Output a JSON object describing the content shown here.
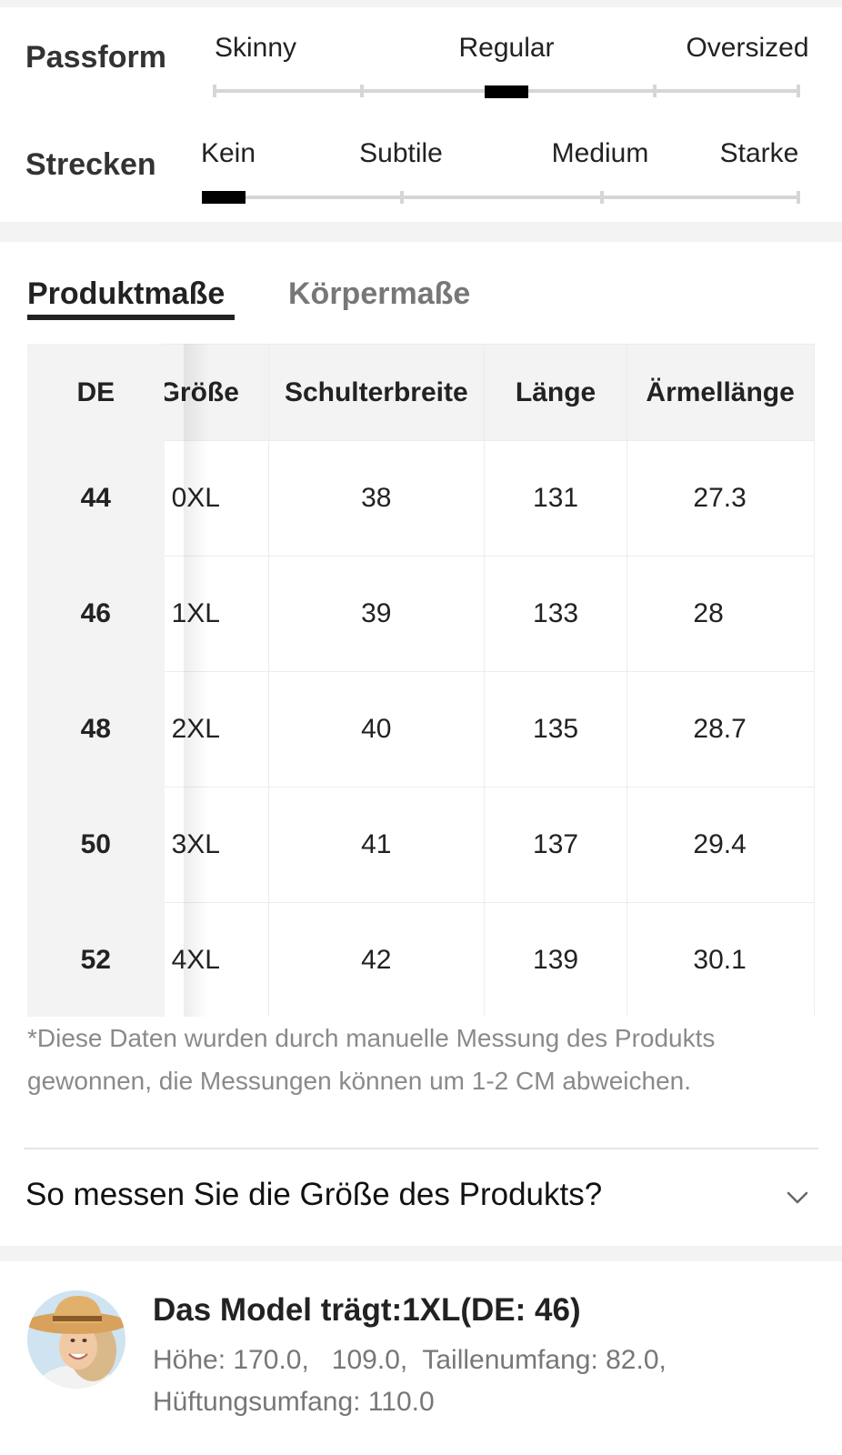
{
  "fit": {
    "passform": {
      "label": "Passform",
      "options": [
        "Skinny",
        "Regular",
        "Oversized"
      ],
      "selected": "Regular"
    },
    "strecken": {
      "label": "Strecken",
      "options": [
        "Kein",
        "Subtile",
        "Medium",
        "Starke"
      ],
      "selected": "Kein"
    }
  },
  "tabs": {
    "active": "Produktmaße",
    "inactive": "Körpermaße"
  },
  "table": {
    "headers": [
      "DE",
      "Größe",
      "Schulterbreite",
      "Länge",
      "Ärmellänge"
    ],
    "rows": [
      [
        "44",
        "0XL",
        "38",
        "131",
        "27.3"
      ],
      [
        "46",
        "1XL",
        "39",
        "133",
        "28"
      ],
      [
        "48",
        "2XL",
        "40",
        "135",
        "28.7"
      ],
      [
        "50",
        "3XL",
        "41",
        "137",
        "29.4"
      ],
      [
        "52",
        "4XL",
        "42",
        "139",
        "30.1"
      ]
    ]
  },
  "note": "*Diese Daten wurden durch manuelle Messung des Produkts gewonnen, die Messungen können um 1-2 CM abweichen.",
  "howto": {
    "label": "So messen Sie die Größe des Produkts?",
    "icon": "chevron-down-icon"
  },
  "model": {
    "title": "Das Model trägt:1XL(DE: 46)",
    "line1": "Höhe: 170.0,   109.0,  Taillenumfang: 82.0,",
    "line2": "Hüftungsumfang: 110.0"
  }
}
